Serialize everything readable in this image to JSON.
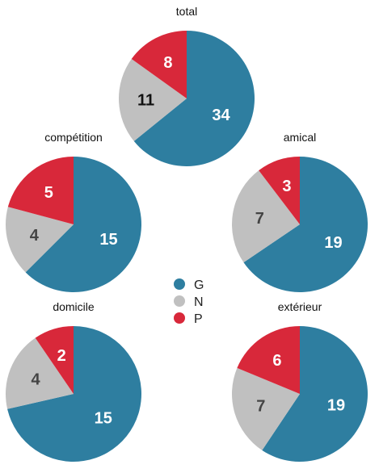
{
  "chart_data": {
    "type": "pie",
    "legend": {
      "placement": "center",
      "entries": [
        {
          "label": "G",
          "color": "#2e7ea0"
        },
        {
          "label": "N",
          "color": "#c0c0c0"
        },
        {
          "label": "P",
          "color": "#d8283a"
        }
      ]
    },
    "pies": [
      {
        "title": "total",
        "values": {
          "G": 34,
          "N": 11,
          "P": 8
        }
      },
      {
        "title": "compétition",
        "values": {
          "G": 15,
          "N": 4,
          "P": 5
        }
      },
      {
        "title": "amical",
        "values": {
          "G": 19,
          "N": 7,
          "P": 3
        }
      },
      {
        "title": "domicile",
        "values": {
          "G": 15,
          "N": 4,
          "P": 2
        }
      },
      {
        "title": "extérieur",
        "values": {
          "G": 19,
          "N": 7,
          "P": 6
        }
      }
    ]
  }
}
